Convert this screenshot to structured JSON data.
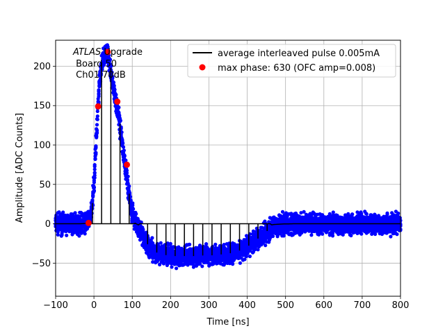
{
  "chart_data": {
    "type": "scatter",
    "title": "",
    "xlabel": "Time [ns]",
    "ylabel": "Amplitude [ADC Counts]",
    "xlim": [
      -100,
      800
    ],
    "ylim": [
      -92,
      233
    ],
    "xticks": [
      -100,
      0,
      100,
      200,
      300,
      400,
      500,
      600,
      700,
      800
    ],
    "yticks": [
      -50,
      0,
      50,
      100,
      150,
      200
    ],
    "grid": true,
    "annotation": {
      "experiment": "ATLAS",
      "suffix": " Upgrade",
      "line2": " Board 50",
      "line3": " Ch01 70dB"
    },
    "legend": {
      "position": "top-right",
      "entries": [
        {
          "label": "average interleaved pulse 0.005mA",
          "style": "line",
          "color": "#000000"
        },
        {
          "label": "max phase: 630 (OFC amp=0.008)",
          "style": "marker",
          "color": "#ff0000"
        }
      ]
    },
    "series": [
      {
        "name": "samples",
        "color": "#0000ff",
        "noise_band": 18,
        "x_step_ns": 1.5,
        "description_points": "dense scatter around the average pulse"
      },
      {
        "name": "average interleaved pulse 0.005mA",
        "color": "#000000",
        "x": [
          -100,
          -40,
          -25,
          -15,
          -8,
          -3,
          0,
          5,
          10,
          15,
          20,
          25,
          30,
          35,
          40,
          45,
          50,
          55,
          60,
          65,
          70,
          75,
          80,
          85,
          90,
          95,
          100,
          110,
          120,
          130,
          140,
          150,
          160,
          175,
          190,
          210,
          230,
          250,
          270,
          290,
          310,
          330,
          350,
          370,
          390,
          410,
          425,
          440,
          455,
          470,
          490,
          520,
          560,
          600,
          650,
          700,
          750,
          800
        ],
        "y": [
          0,
          0,
          1,
          4,
          12,
          30,
          55,
          100,
          150,
          185,
          205,
          215,
          219,
          218,
          210,
          195,
          178,
          165,
          155,
          138,
          120,
          100,
          82,
          65,
          45,
          28,
          12,
          0,
          -8,
          -18,
          -26,
          -32,
          -36,
          -38,
          -40,
          -41,
          -41,
          -41,
          -41,
          -40,
          -40,
          -39,
          -38,
          -36,
          -32,
          -26,
          -20,
          -14,
          -8,
          -3,
          -1,
          0,
          0,
          0,
          0,
          0,
          0,
          0
        ]
      },
      {
        "name": "max phase: 630 (OFC amp=0.008)",
        "color": "#ff0000",
        "x": [
          -14,
          11,
          36,
          61,
          86
        ],
        "y": [
          1,
          149,
          218,
          155,
          75
        ]
      }
    ]
  }
}
